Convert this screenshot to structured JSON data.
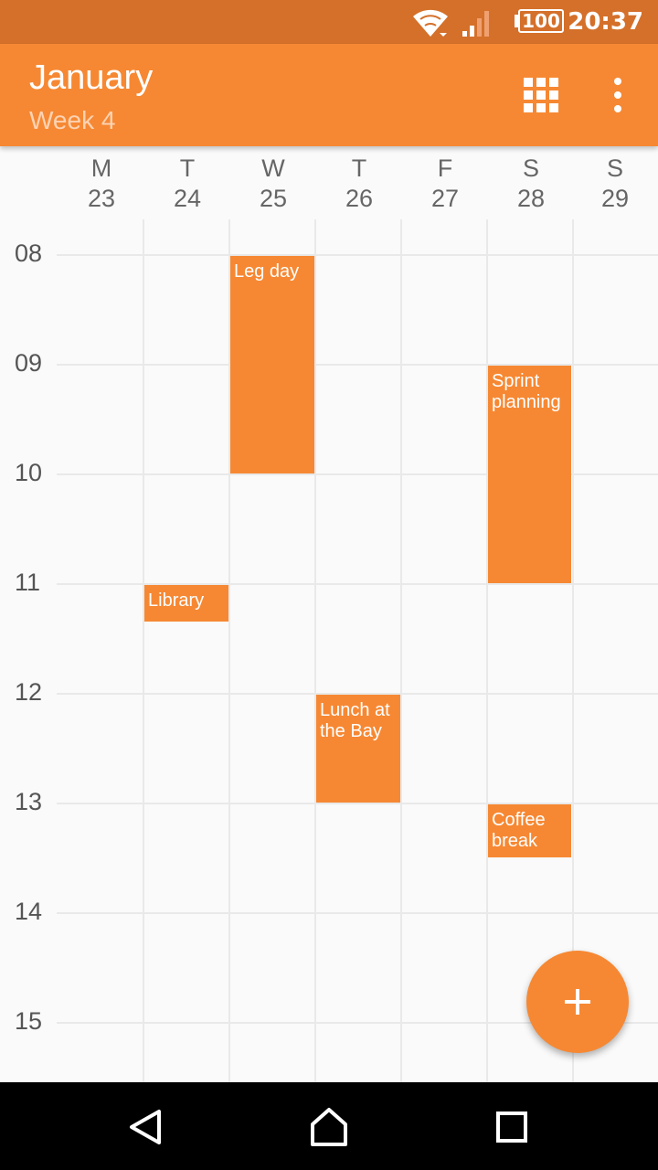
{
  "status_bar": {
    "time": "20:37",
    "battery": "100",
    "icons": [
      "wifi-icon",
      "cell-signal-icon",
      "battery-icon"
    ]
  },
  "app_bar": {
    "title": "January",
    "subtitle": "Week 4",
    "actions": [
      "grid-view-icon",
      "more-vert-icon"
    ]
  },
  "days": [
    {
      "letter": "M",
      "date": "23"
    },
    {
      "letter": "T",
      "date": "24"
    },
    {
      "letter": "W",
      "date": "25"
    },
    {
      "letter": "T",
      "date": "26"
    },
    {
      "letter": "F",
      "date": "27"
    },
    {
      "letter": "S",
      "date": "28"
    },
    {
      "letter": "S",
      "date": "29"
    }
  ],
  "hours": [
    "08",
    "09",
    "10",
    "11",
    "12",
    "13",
    "14",
    "15"
  ],
  "events": [
    {
      "title": "Leg day",
      "day": "25",
      "start": "08:00",
      "end": "10:00"
    },
    {
      "title": "Sprint planning",
      "day": "28",
      "start": "09:00",
      "end": "11:00"
    },
    {
      "title": "Library",
      "day": "24",
      "start": "11:00",
      "end": "11:20"
    },
    {
      "title": "Lunch at the Bay",
      "day": "26",
      "start": "12:00",
      "end": "13:00"
    },
    {
      "title": "Coffee break",
      "day": "28",
      "start": "13:00",
      "end": "13:30"
    }
  ],
  "fab": {
    "icon": "add-icon"
  },
  "nav_bar": {
    "buttons": [
      "back-icon",
      "home-icon",
      "recents-icon"
    ]
  },
  "colors": {
    "accent": "#f68833",
    "status_bar": "#d4702a",
    "subtitle": "#fcd3b3"
  }
}
